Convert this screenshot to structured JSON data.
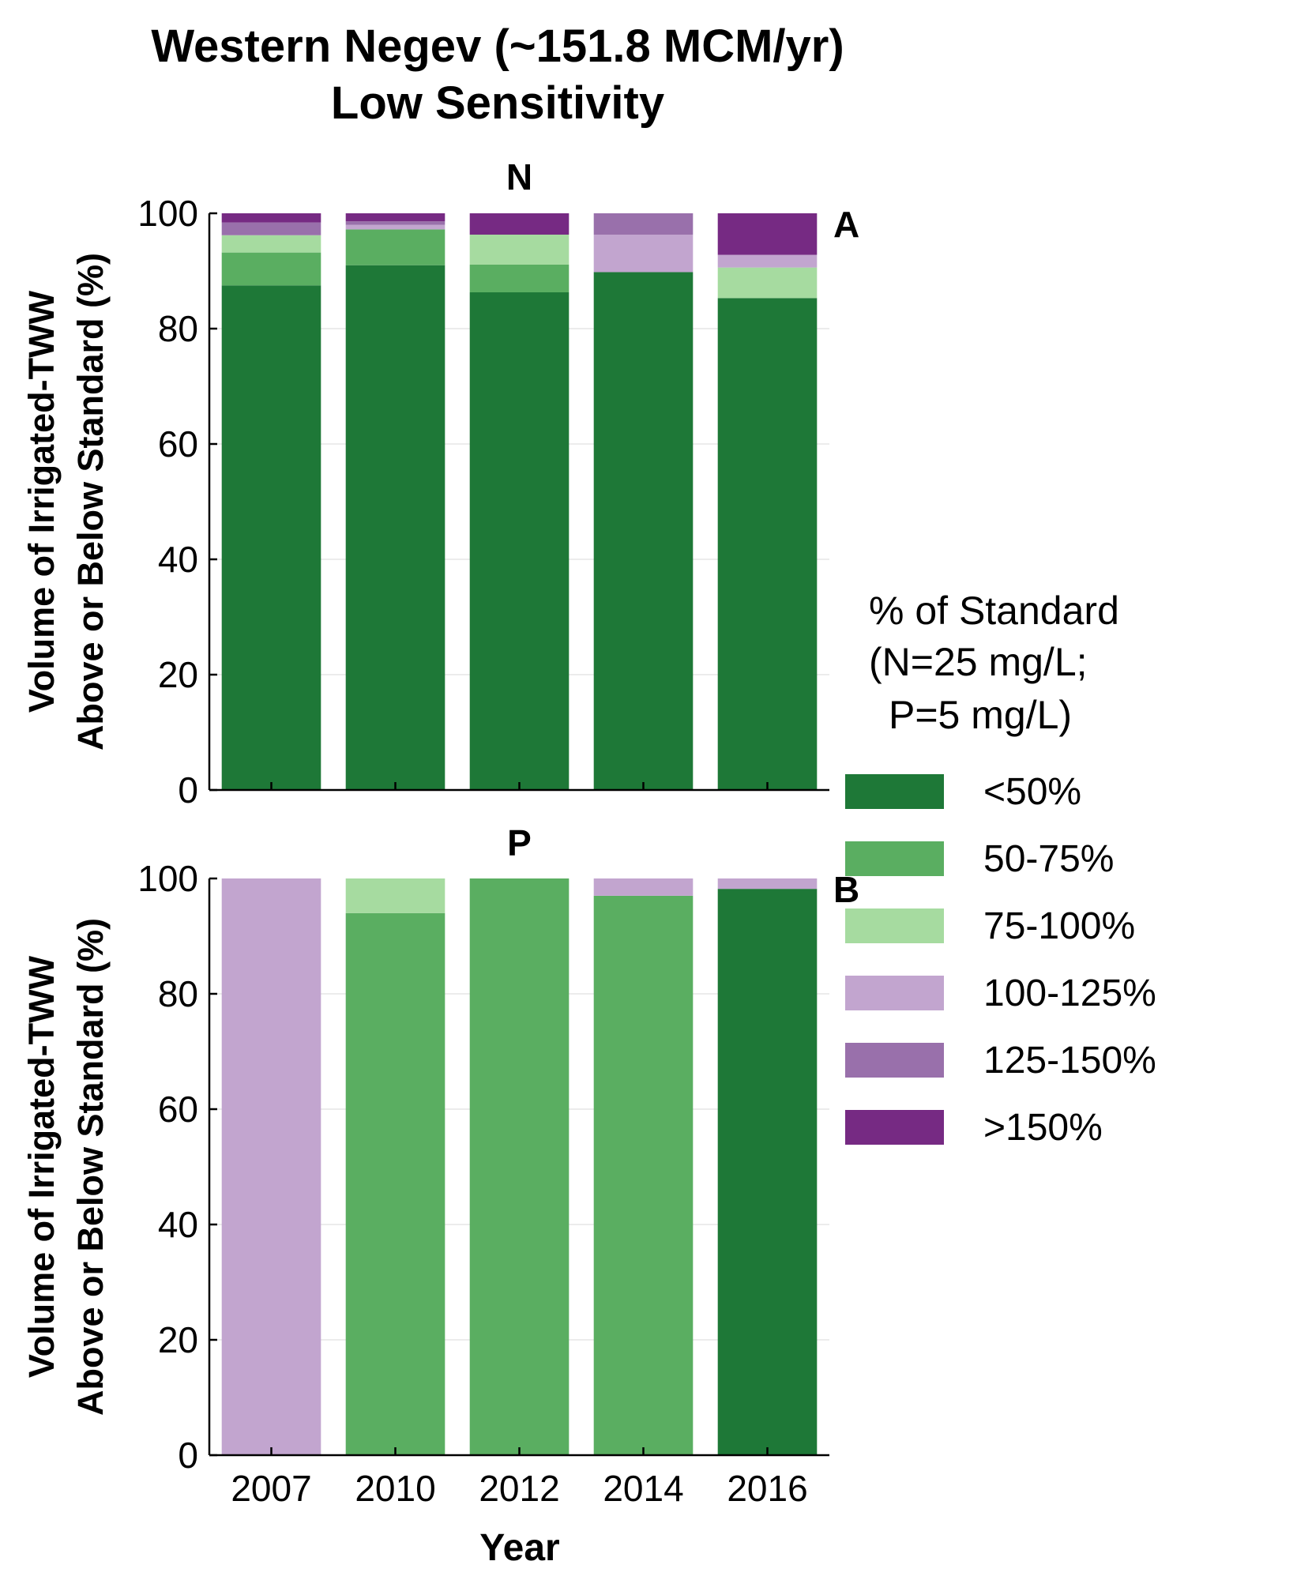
{
  "chart_data": {
    "type": "bar",
    "stacked": true,
    "title": "Western Negev (~151.8 MCM/yr)",
    "subtitle": "Low Sensitivity",
    "xlabel": "Year",
    "ylabel_line1": "Volume of Irrigated-TWW",
    "ylabel_line2": "Above or Below Standard (%)",
    "ylim": [
      0,
      100
    ],
    "yticks": [
      "0",
      "20",
      "40",
      "60",
      "80",
      "100"
    ],
    "categories": [
      "2007",
      "2010",
      "2012",
      "2014",
      "2016"
    ],
    "legend": {
      "title_lines": [
        "% of Standard",
        "(N=25 mg/L;",
        "P=5 mg/L)"
      ],
      "placement": "right",
      "entries": [
        {
          "label": "<50%",
          "color": "#1e7837"
        },
        {
          "label": "50-75%",
          "color": "#5aae61"
        },
        {
          "label": "75-100%",
          "color": "#a6dba0"
        },
        {
          "label": "100-125%",
          "color": "#c2a5cf"
        },
        {
          "label": "125-150%",
          "color": "#9970ab"
        },
        {
          "label": ">150%",
          "color": "#762a83"
        }
      ]
    },
    "panels": [
      {
        "title": "N",
        "letter": "A",
        "series": [
          {
            "name": "<50%",
            "values": [
              87.5,
              91.0,
              86.3,
              89.8,
              85.3
            ]
          },
          {
            "name": "50-75%",
            "values": [
              5.7,
              6.2,
              4.8,
              0,
              0
            ]
          },
          {
            "name": "75-100%",
            "values": [
              3.0,
              0,
              5.2,
              0,
              5.3
            ]
          },
          {
            "name": "100-125%",
            "values": [
              0,
              0.8,
              0,
              6.5,
              2.2
            ]
          },
          {
            "name": "125-150%",
            "values": [
              2.2,
              0.6,
              0,
              3.7,
              0
            ]
          },
          {
            "name": ">150%",
            "values": [
              1.6,
              1.4,
              3.7,
              0,
              7.2
            ]
          }
        ]
      },
      {
        "title": "P",
        "letter": "B",
        "series": [
          {
            "name": "<50%",
            "values": [
              0,
              0,
              0,
              0,
              98.2
            ]
          },
          {
            "name": "50-75%",
            "values": [
              0,
              94.0,
              100,
              97.0,
              0
            ]
          },
          {
            "name": "75-100%",
            "values": [
              0,
              6.0,
              0,
              0,
              0
            ]
          },
          {
            "name": "100-125%",
            "values": [
              100,
              0,
              0,
              3.0,
              1.8
            ]
          },
          {
            "name": "125-150%",
            "values": [
              0,
              0,
              0,
              0,
              0
            ]
          },
          {
            "name": ">150%",
            "values": [
              0,
              0,
              0,
              0,
              0
            ]
          }
        ]
      }
    ]
  }
}
